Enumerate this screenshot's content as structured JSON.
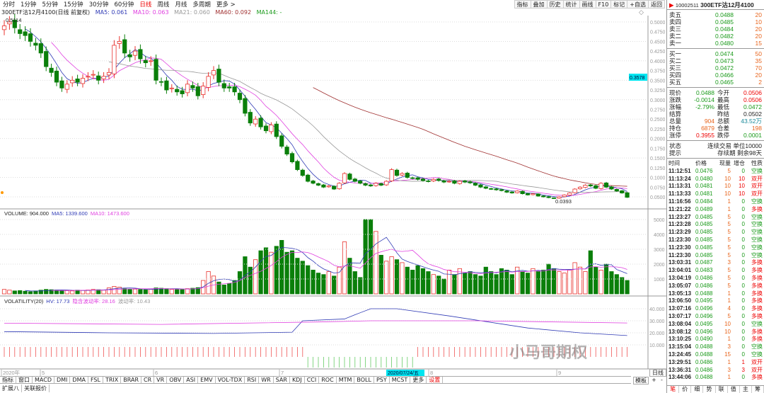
{
  "periods": [
    "分时",
    "1分钟",
    "5分钟",
    "15分钟",
    "30分钟",
    "60分钟",
    "日线",
    "周线",
    "月线",
    "多周期",
    "更多 >"
  ],
  "active_period": "日线",
  "tools": [
    "指标",
    "叠加",
    "历史",
    "统计",
    "画线",
    "F10",
    "标记",
    "+自选",
    "返回"
  ],
  "legend": {
    "title": "300ETF沽12月4100(日线 前复权)",
    "ma5": "MA5: 0.061",
    "ma10": "MA10: 0.063",
    "ma21": "MA21: 0.060",
    "ma60": "MA60: 0.092",
    "ma144": "MA144: -"
  },
  "colors": {
    "up": "#e8322d",
    "down": "#0a7f0a",
    "ma5": "#2f3ab5",
    "ma10": "#e040e0",
    "ma21": "#999999",
    "ma60": "#a03030",
    "ma144": "#1a9a1a",
    "cursor": "#00e5f0"
  },
  "price_high_label": "0.5114",
  "price_low_label": "0.0393",
  "cursor_price": "0.3578",
  "volume_legend": {
    "title": "VOLUME: 904.000",
    "ma5": "MA5: 1339.600",
    "ma10": "MA10: 1473.600"
  },
  "vol_legend": {
    "title": "VOLATILITY(20)",
    "hv": "HV: 17.73",
    "iv": "隐含波动率: 28.16",
    "wave": "波动率: 10.43"
  },
  "chart_data": {
    "type": "candlestick",
    "price_axis": [
      "0.5000",
      "0.4750",
      "0.4500",
      "0.4250",
      "0.4000",
      "0.3750",
      "0.3500",
      "0.3250",
      "0.3000",
      "0.2750",
      "0.2500",
      "0.2250",
      "0.2000",
      "0.1750",
      "0.1500",
      "0.1250",
      "0.1000",
      "0.0750",
      "0.0500"
    ],
    "ylim": [
      0.05,
      0.5
    ],
    "closes": [
      0.49,
      0.5,
      0.485,
      0.47,
      0.465,
      0.45,
      0.44,
      0.42,
      0.385,
      0.37,
      0.345,
      0.33,
      0.34,
      0.35,
      0.345,
      0.355,
      0.36,
      0.365,
      0.35,
      0.36,
      0.37,
      0.44,
      0.45,
      0.42,
      0.41,
      0.425,
      0.405,
      0.395,
      0.4,
      0.35,
      0.345,
      0.325,
      0.33,
      0.32,
      0.315,
      0.34,
      0.33,
      0.31,
      0.335,
      0.36,
      0.375,
      0.345,
      0.33,
      0.33,
      0.32,
      0.3,
      0.265,
      0.24,
      0.25,
      0.23,
      0.22,
      0.235,
      0.205,
      0.18,
      0.16,
      0.14,
      0.12,
      0.105,
      0.09,
      0.085,
      0.08,
      0.075,
      0.078,
      0.07,
      0.085,
      0.11,
      0.095,
      0.09,
      0.085,
      0.08,
      0.078,
      0.085,
      0.08,
      0.09,
      0.12,
      0.105,
      0.11,
      0.1,
      0.098,
      0.095,
      0.092,
      0.09,
      0.095,
      0.092,
      0.088,
      0.09,
      0.085,
      0.09,
      0.088,
      0.086,
      0.08,
      0.075,
      0.072,
      0.07,
      0.068,
      0.066,
      0.062,
      0.06,
      0.065,
      0.058,
      0.055,
      0.058,
      0.052,
      0.05,
      0.048,
      0.046,
      0.05,
      0.055,
      0.06,
      0.07,
      0.075,
      0.08,
      0.078,
      0.072,
      0.085,
      0.075,
      0.07,
      0.065,
      0.06,
      0.0488
    ],
    "volumes": [
      300,
      250,
      200,
      220,
      180,
      150,
      200,
      250,
      300,
      280,
      260,
      240,
      220,
      200,
      250,
      230,
      260,
      300,
      280,
      250,
      400,
      500,
      450,
      350,
      300,
      320,
      300,
      280,
      300,
      400,
      380,
      350,
      300,
      320,
      300,
      350,
      380,
      420,
      900,
      1500,
      1200,
      800,
      600,
      700,
      900,
      1500,
      2500,
      1800,
      2300,
      2900,
      3100,
      2800,
      3200,
      3600,
      2800,
      2900,
      2400,
      2200,
      1900,
      1600,
      1400,
      1300,
      1500,
      1200,
      1800,
      3500,
      2400,
      1500,
      1100,
      5000,
      5000,
      4200,
      2600,
      2200,
      2500,
      2300,
      2100,
      1800,
      1600,
      1900,
      1700,
      1500,
      1300,
      1200,
      1000,
      1600,
      1300,
      1700,
      1400,
      1500,
      1300,
      1200,
      1800,
      1500,
      1300,
      1700,
      1600,
      1300,
      1800,
      1500,
      1400,
      1700,
      1500,
      1600,
      2000,
      1700,
      1500,
      1400,
      1600,
      2100,
      1800,
      1500,
      2900,
      1800,
      1600,
      2000,
      1500,
      1300,
      1100,
      904
    ],
    "volume_axis": [
      "5000",
      "4000",
      "3000",
      "2000",
      "1000"
    ],
    "volatility_axis": [
      "40.000",
      "30.000",
      "20.000",
      "10.000"
    ],
    "hv_points": [
      [
        0,
        21000
      ],
      [
        20,
        20000
      ],
      [
        40,
        19500
      ],
      [
        55,
        20500
      ],
      [
        57,
        30000
      ],
      [
        65,
        31500
      ],
      [
        67,
        35000
      ],
      [
        70,
        40000
      ],
      [
        75,
        40000
      ],
      [
        85,
        34000
      ],
      [
        100,
        24000
      ],
      [
        110,
        20000
      ],
      [
        119,
        17730
      ]
    ],
    "iv_points": [
      [
        0,
        28000
      ],
      [
        30,
        27000
      ],
      [
        60,
        29000
      ],
      [
        70,
        30000
      ],
      [
        90,
        30000
      ],
      [
        119,
        28160
      ]
    ],
    "date_labels": [
      "2020年",
      "5",
      "6",
      "7",
      "8",
      "9"
    ],
    "cursor_date": "2020/07/24/五"
  },
  "indicators": [
    "指标",
    "窗口",
    "MACD",
    "DMI",
    "DMA",
    "FSL",
    "TRIX",
    "BRAR",
    "CR",
    "VR",
    "OBV",
    "ASI",
    "EMV",
    "VOL-TDX",
    "RSI",
    "WR",
    "SAR",
    "KDJ",
    "CCI",
    "ROC",
    "MTM",
    "BOLL",
    "PSY",
    "MCST",
    "更多",
    "设置"
  ],
  "ext": [
    "扩展八",
    "关联报价"
  ],
  "template_btn": "模板",
  "plus": "+",
  "minus": "-",
  "axis_mode": "日线",
  "quote": {
    "code": "10002511",
    "name": "300ETF沽12月4100",
    "sell": [
      [
        "卖五",
        "0.0488",
        "20"
      ],
      [
        "卖四",
        "0.0485",
        "10"
      ],
      [
        "卖三",
        "0.0484",
        "20"
      ],
      [
        "卖二",
        "0.0482",
        "20"
      ],
      [
        "卖一",
        "0.0480",
        "15"
      ]
    ],
    "buy": [
      [
        "买一",
        "0.0474",
        "50"
      ],
      [
        "买二",
        "0.0473",
        "35"
      ],
      [
        "买三",
        "0.0472",
        "70"
      ],
      [
        "买四",
        "0.0466",
        "20"
      ],
      [
        "买五",
        "0.0465",
        "2"
      ]
    ],
    "stats": [
      [
        "现价",
        "0.0488",
        "今开",
        "0.0506"
      ],
      [
        "涨跌",
        "-0.0014",
        "最高",
        "0.0506"
      ],
      [
        "涨幅",
        "-2.79%",
        "最低",
        "0.0472"
      ],
      [
        "结算",
        "",
        "昨结",
        "0.0502"
      ],
      [
        "总量",
        "904",
        "总额",
        "43.52万"
      ],
      [
        "持仓",
        "6879",
        "仓差",
        "198"
      ],
      [
        "涨停",
        "0.3955",
        "跌停",
        "0.0001"
      ]
    ],
    "status": [
      "状态",
      "连续交易 单位10000"
    ],
    "hint": [
      "提示",
      "存续期 剩余98天"
    ],
    "tick_headers": [
      "时间",
      "价格",
      "现量",
      "增仓",
      "性质"
    ],
    "ticks": [
      [
        "11:12:51",
        "0.0476",
        "5",
        "0",
        "空换"
      ],
      [
        "11:13:24",
        "0.0480",
        "10",
        "10",
        "双开"
      ],
      [
        "11:13:31",
        "0.0481",
        "10",
        "10",
        "双开"
      ],
      [
        "11:13:33",
        "0.0481",
        "10",
        "10",
        "双开"
      ],
      [
        "11:16:56",
        "0.0484",
        "1",
        "0",
        "空换"
      ],
      [
        "11:21:22",
        "0.0489",
        "1",
        "0",
        "多换"
      ],
      [
        "11:23:27",
        "0.0485",
        "5",
        "0",
        "空换"
      ],
      [
        "11:23:28",
        "0.0485",
        "5",
        "0",
        "空换"
      ],
      [
        "11:23:29",
        "0.0485",
        "5",
        "0",
        "空换"
      ],
      [
        "11:23:30",
        "0.0485",
        "5",
        "0",
        "空换"
      ],
      [
        "11:23:30",
        "0.0485",
        "5",
        "0",
        "空换"
      ],
      [
        "11:23:30",
        "0.0485",
        "5",
        "0",
        "空换"
      ],
      [
        "13:03:31",
        "0.0487",
        "3",
        "0",
        "多换"
      ],
      [
        "13:04:01",
        "0.0483",
        "5",
        "0",
        "多换"
      ],
      [
        "13:04:19",
        "0.0486",
        "5",
        "0",
        "多换"
      ],
      [
        "13:05:07",
        "0.0486",
        "5",
        "0",
        "多换"
      ],
      [
        "13:05:13",
        "0.0488",
        "1",
        "0",
        "多换"
      ],
      [
        "13:06:50",
        "0.0495",
        "1",
        "0",
        "多换"
      ],
      [
        "13:07:16",
        "0.0496",
        "4",
        "0",
        "多换"
      ],
      [
        "13:07:17",
        "0.0496",
        "5",
        "0",
        "多换"
      ],
      [
        "13:08:04",
        "0.0495",
        "10",
        "0",
        "空换"
      ],
      [
        "13:08:12",
        "0.0496",
        "10",
        "0",
        "多换"
      ],
      [
        "13:10:25",
        "0.0490",
        "1",
        "0",
        "多换"
      ],
      [
        "13:15:04",
        "0.0488",
        "3",
        "0",
        "空换"
      ],
      [
        "13:24:45",
        "0.0488",
        "15",
        "0",
        "空换"
      ],
      [
        "13:29:51",
        "0.0486",
        "1",
        "1",
        "双开"
      ],
      [
        "13:36:31",
        "0.0486",
        "3",
        "3",
        "双开"
      ],
      [
        "13:44:06",
        "0.0488",
        "1",
        "0",
        "多换"
      ]
    ],
    "tabs": [
      "笔",
      "价",
      "细",
      "势",
      "联",
      "值",
      "主",
      "筹"
    ]
  },
  "watermark": "小马哥期权"
}
